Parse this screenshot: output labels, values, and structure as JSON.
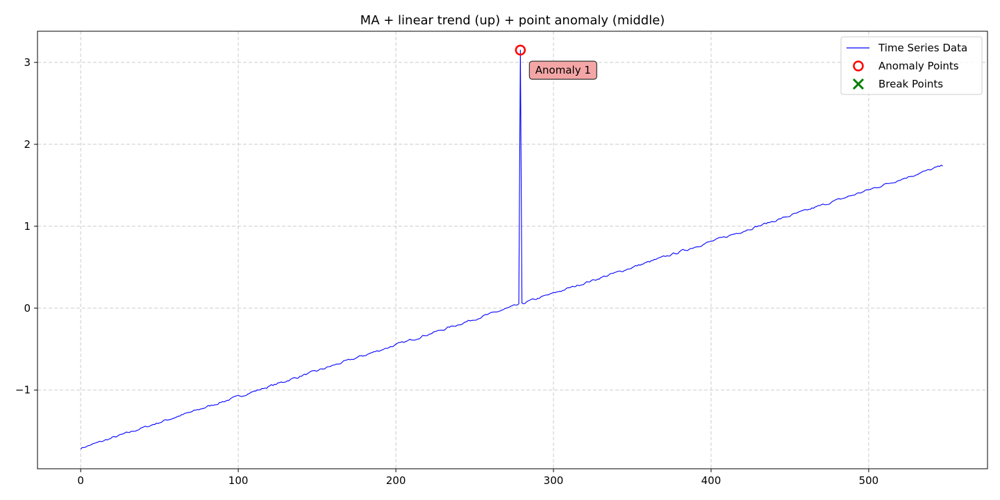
{
  "chart_data": {
    "type": "line",
    "title": "MA + linear trend (up) + point anomaly (middle)",
    "xlabel": "",
    "ylabel": "",
    "xlim": [
      -27.4,
      575.4
    ],
    "ylim": [
      -1.96,
      3.38
    ],
    "x_ticks": [
      0,
      100,
      200,
      300,
      400,
      500
    ],
    "y_ticks": [
      -1,
      0,
      1,
      2,
      3
    ],
    "y_tick_labels": [
      "−1",
      "0",
      "1",
      "2",
      "3"
    ],
    "grid": true,
    "legend_position": "top-right",
    "series": [
      {
        "name": "Time Series Data",
        "color": "#0000ff",
        "x_start": 0,
        "x_end": 547,
        "y_start": -1.71,
        "y_end": 1.74,
        "anomaly": {
          "x": 279,
          "y": 3.15
        }
      }
    ],
    "anomaly_points": [
      {
        "x": 279,
        "y": 3.15,
        "label": "Anomaly 1"
      }
    ],
    "break_points": [],
    "legend": [
      {
        "label": "Time Series Data",
        "marker": "line",
        "color": "#0000ff"
      },
      {
        "label": "Anomaly Points",
        "marker": "circle",
        "color": "#ff0000"
      },
      {
        "label": "Break Points",
        "marker": "x",
        "color": "#008000"
      }
    ]
  }
}
